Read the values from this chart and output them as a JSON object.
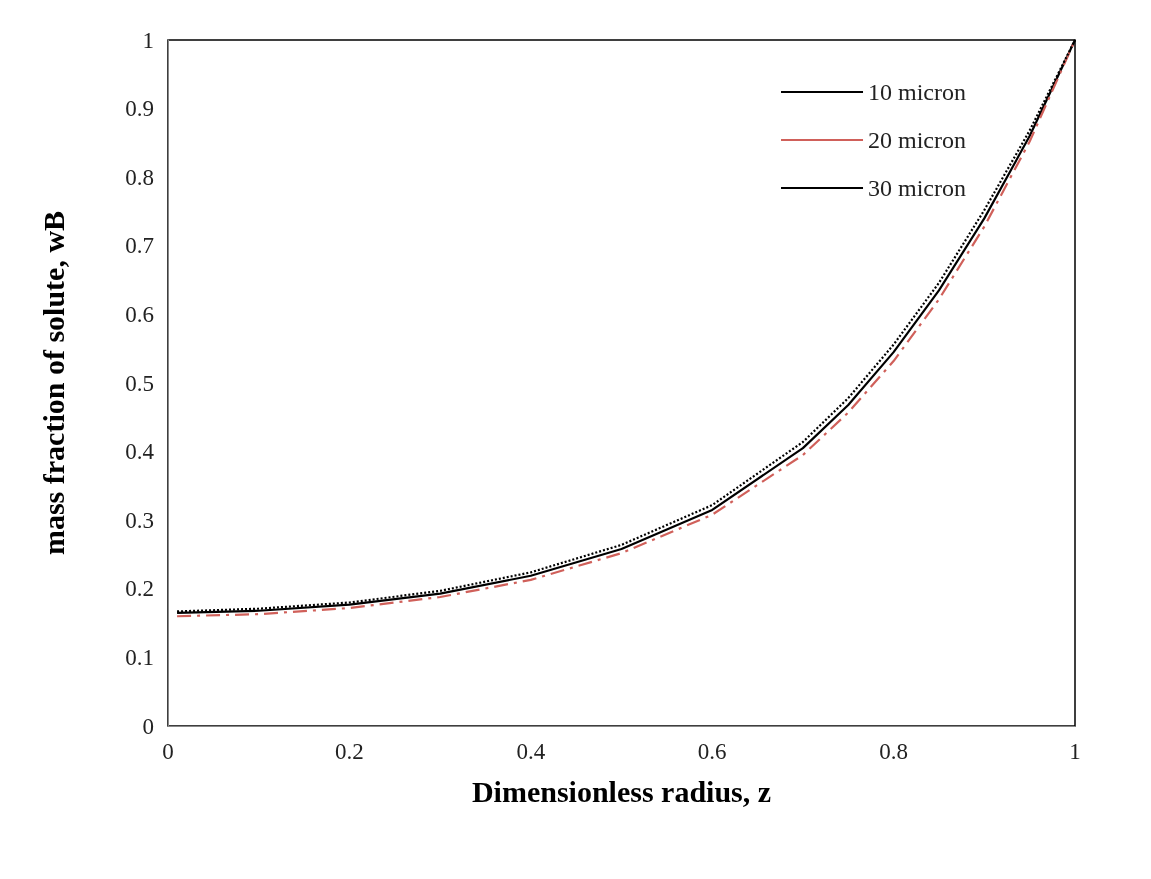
{
  "chart_data": {
    "type": "line",
    "xlabel": "Dimensionless radius, z",
    "ylabel": "mass fraction of solute, wB",
    "x": [
      0.01,
      0.1,
      0.2,
      0.3,
      0.4,
      0.5,
      0.6,
      0.7,
      0.75,
      0.8,
      0.85,
      0.9,
      0.95,
      1.0
    ],
    "series": [
      {
        "name": "10 micron",
        "color": "#000000",
        "line_style": "solid",
        "values": [
          0.165,
          0.168,
          0.177,
          0.193,
          0.219,
          0.258,
          0.315,
          0.405,
          0.468,
          0.545,
          0.635,
          0.74,
          0.86,
          1.0
        ]
      },
      {
        "name": "20 micron",
        "color": "#d0605a",
        "line_style": "dashed",
        "values": [
          0.16,
          0.163,
          0.172,
          0.188,
          0.213,
          0.252,
          0.308,
          0.395,
          0.457,
          0.532,
          0.622,
          0.728,
          0.852,
          1.0
        ]
      },
      {
        "name": "30 micron",
        "color": "#000000",
        "line_style": "dotted",
        "values": [
          0.167,
          0.171,
          0.18,
          0.197,
          0.224,
          0.264,
          0.322,
          0.414,
          0.478,
          0.556,
          0.646,
          0.752,
          0.868,
          1.0
        ]
      }
    ],
    "xlim": [
      0,
      1
    ],
    "xticks": [
      0,
      0.2,
      0.4,
      0.6,
      0.8,
      1
    ],
    "ylim": [
      0,
      1
    ],
    "yticks": [
      0,
      0.1,
      0.2,
      0.3,
      0.4,
      0.5,
      0.6,
      0.7,
      0.8,
      0.9,
      1
    ],
    "grid": false,
    "legend": "top right",
    "marker": "none"
  }
}
